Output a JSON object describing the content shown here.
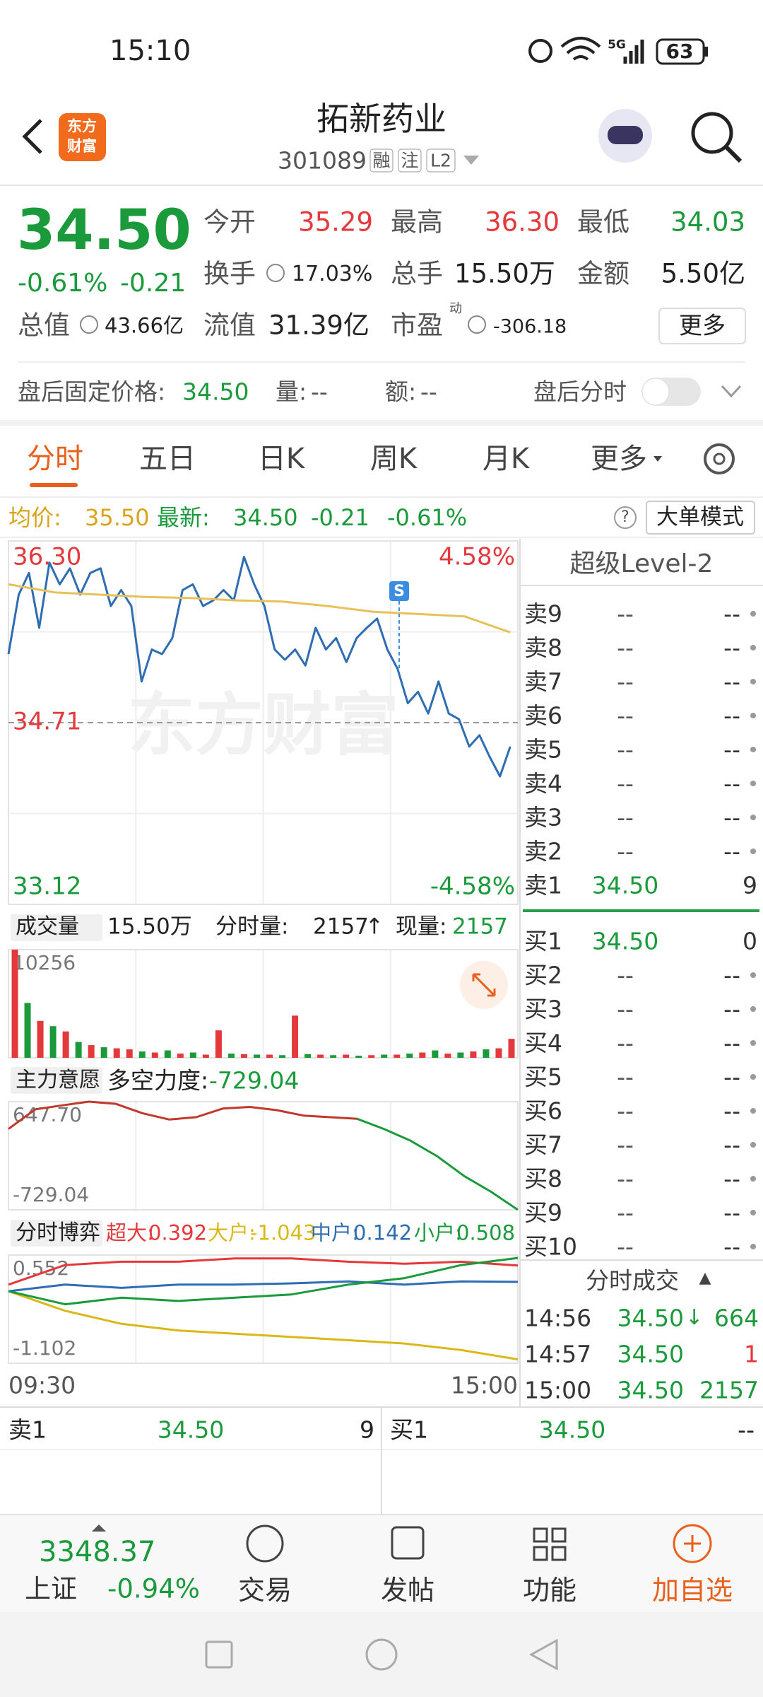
{
  "status": {
    "time": "15:10",
    "network": "5G",
    "battery": "63"
  },
  "header": {
    "logo": [
      "东方",
      "财富"
    ],
    "title": "拓新药业",
    "code": "301089",
    "tags": [
      "融",
      "注",
      "L2"
    ]
  },
  "quote": {
    "price": "34.50",
    "change_pct": "-0.61%",
    "change": "-0.21",
    "fields": [
      {
        "label": "今开",
        "value": "35.29"
      },
      {
        "label": "最高",
        "value": "36.30"
      },
      {
        "label": "最低",
        "value": "34.03"
      },
      {
        "label": "换手",
        "value": "17.03%"
      },
      {
        "label": "总手",
        "value": "15.50万"
      },
      {
        "label": "金额",
        "value": "5.50亿"
      },
      {
        "label": "总值",
        "value": "43.66亿"
      },
      {
        "label": "流值",
        "value": "31.39亿"
      },
      {
        "label": "市盈",
        "sup": "动",
        "value": "-306.18"
      }
    ],
    "more": "更多"
  },
  "after_hours": {
    "label": "盘后固定价格:",
    "price": "34.50",
    "volume_label": "量:",
    "volume": "--",
    "amount_label": "额:",
    "amount": "--",
    "toggle_label": "盘后分时"
  },
  "tabs": [
    "分时",
    "五日",
    "日K",
    "周K",
    "月K",
    "更多"
  ],
  "info_bar": {
    "avg_label": "均价:",
    "avg": "35.50",
    "latest_label": "最新:",
    "latest": "34.50",
    "change": "-0.21",
    "change_pct": "-0.61%",
    "help": "?",
    "mode": "大单模式"
  },
  "chart_data": [
    {
      "type": "line",
      "watermark": "东方财富",
      "signal": "S",
      "grid": true,
      "ylim": [
        33.12,
        36.3
      ],
      "yticks": [
        33.12,
        34.71,
        {
          "value": 36.3,
          "label": "36.30"
        }
      ],
      "y2lim": [
        -4.58,
        4.58
      ],
      "y2ticks": [
        {
          "value": -4.58,
          "label": "-4.58%"
        },
        {
          "value": 4.58,
          "label": "4.58%"
        }
      ],
      "series": [
        {
          "color": "#2f6db3",
          "values": [
            35.31,
            35.83,
            36.02,
            35.54,
            36.11,
            35.92,
            36.06,
            35.83,
            36.02,
            36.06,
            35.73,
            35.87,
            35.73,
            35.07,
            35.35,
            35.31,
            35.45,
            35.87,
            35.92,
            35.73,
            35.78,
            35.87,
            35.78,
            36.16,
            35.92,
            35.73,
            35.35,
            35.26,
            35.35,
            35.21,
            35.54,
            35.35,
            35.45,
            35.24,
            35.45,
            35.54,
            35.62,
            35.35,
            35.18,
            34.88,
            34.98,
            34.79,
            35.07,
            34.79,
            34.74,
            34.5,
            34.6,
            34.41,
            34.24,
            34.5
          ]
        },
        {
          "color": "#e6c15a",
          "values": [
            35.92,
            35.85,
            35.83,
            35.81,
            35.8,
            35.78,
            35.77,
            35.73,
            35.68,
            35.66,
            35.64,
            35.5
          ]
        }
      ]
    },
    {
      "type": "bar",
      "title": "成交量",
      "total": "15.50万",
      "period_label": "分时量:",
      "period_value": "2157",
      "period_arrow": "↑",
      "now_label": "现量:",
      "now_value": "2157",
      "ylim": [
        0,
        10256
      ],
      "yticks": [
        10256
      ],
      "series": [
        {
          "color": "#e4393c",
          "values": [
            10256,
            null,
            3500,
            null,
            2500,
            null,
            1200,
            null,
            900,
            800,
            null,
            500,
            null,
            400,
            null,
            300,
            2600,
            null,
            350,
            null,
            300,
            null,
            4000,
            null,
            300,
            null,
            300,
            null,
            250,
            null,
            300,
            null,
            500,
            null,
            400,
            null,
            600,
            null,
            900,
            1800
          ]
        },
        {
          "color": "#1b9a3c",
          "values": [
            null,
            5200,
            null,
            3000,
            null,
            1500,
            null,
            1000,
            null,
            null,
            600,
            null,
            700,
            null,
            500,
            null,
            null,
            400,
            null,
            300,
            null,
            250,
            null,
            350,
            null,
            250,
            null,
            200,
            null,
            300,
            null,
            400,
            null,
            700,
            null,
            500,
            null,
            800,
            null,
            null
          ]
        }
      ]
    },
    {
      "type": "line",
      "title": "主力意愿",
      "metric_label": "多空力度:",
      "ylim": [
        -729.04,
        647.7
      ],
      "yticks": [
        -729.04,
        {
          "value": 647.7,
          "label": "647.70"
        }
      ],
      "series": [
        {
          "color": "#c0392b",
          "values": [
            300,
            550,
            600,
            647.7,
            620,
            500,
            420,
            450,
            560,
            580,
            540,
            470,
            450,
            430,
            null,
            null,
            null,
            null,
            null,
            null
          ]
        },
        {
          "color": "#1b9a3c",
          "values": [
            null,
            null,
            null,
            null,
            null,
            null,
            null,
            null,
            null,
            null,
            null,
            null,
            null,
            430,
            300,
            150,
            -50,
            -300,
            -500,
            -729.04
          ]
        }
      ]
    },
    {
      "type": "line",
      "title": "分时博弈",
      "x_labels": [
        "09:30",
        "15:00"
      ],
      "ylim": [
        -1.102,
        0.552
      ],
      "yticks": [
        -1.102,
        0.552
      ],
      "series": [
        {
          "name": "超大:",
          "color": "#e4393c",
          "values": [
            0.1,
            0.4,
            0.45,
            0.45,
            0.5,
            0.5,
            0.45,
            0.42,
            0.45,
            0.392
          ]
        },
        {
          "name": "大户:",
          "color": "#d9b81a",
          "values": [
            0,
            -0.3,
            -0.5,
            -0.6,
            -0.65,
            -0.7,
            -0.75,
            -0.8,
            -0.9,
            -1.043
          ]
        },
        {
          "name": "中户:",
          "color": "#2f6db3",
          "values": [
            0,
            0.1,
            0.05,
            0.1,
            0.1,
            0.12,
            0.15,
            0.1,
            0.15,
            0.142
          ]
        },
        {
          "name": "小户:",
          "color": "#1b9a3c",
          "values": [
            0,
            -0.2,
            -0.1,
            -0.15,
            -0.1,
            -0.05,
            0.1,
            0.2,
            0.4,
            0.508
          ]
        }
      ]
    }
  ],
  "level2": {
    "title": "超级Level-2",
    "sell": [
      {
        "label": "卖9",
        "price": "--",
        "volume": "--"
      },
      {
        "label": "卖8",
        "price": "--",
        "volume": "--"
      },
      {
        "label": "卖7",
        "price": "--",
        "volume": "--"
      },
      {
        "label": "卖6",
        "price": "--",
        "volume": "--"
      },
      {
        "label": "卖5",
        "price": "--",
        "volume": "--"
      },
      {
        "label": "卖4",
        "price": "--",
        "volume": "--"
      },
      {
        "label": "卖3",
        "price": "--",
        "volume": "--"
      },
      {
        "label": "卖2",
        "price": "--",
        "volume": "--"
      },
      {
        "label": "卖1",
        "price": "34.50",
        "volume": "9"
      }
    ],
    "buy": [
      {
        "label": "买1",
        "price": "34.50",
        "volume": "0"
      },
      {
        "label": "买2",
        "price": "--",
        "volume": "--"
      },
      {
        "label": "买3",
        "price": "--",
        "volume": "--"
      },
      {
        "label": "买4",
        "price": "--",
        "volume": "--"
      },
      {
        "label": "买5",
        "price": "--",
        "volume": "--"
      },
      {
        "label": "买6",
        "price": "--",
        "volume": "--"
      },
      {
        "label": "买7",
        "price": "--",
        "volume": "--"
      },
      {
        "label": "买8",
        "price": "--",
        "volume": "--"
      },
      {
        "label": "买9",
        "price": "--",
        "volume": "--"
      },
      {
        "label": "买10",
        "price": "--",
        "volume": "--"
      }
    ],
    "trades_title": "分时成交",
    "trades_arrow": "▲",
    "trades": [
      {
        "time": "14:56",
        "price": "34.50",
        "arrow": "↓",
        "volume": "664",
        "color": "#1b9a3c"
      },
      {
        "time": "14:57",
        "price": "34.50",
        "volume": "1",
        "color": "#e4393c"
      },
      {
        "time": "15:00",
        "price": "34.50",
        "volume": "2157",
        "color": "#1b9a3c"
      }
    ]
  },
  "bottom_quote": {
    "sell": {
      "label": "卖1",
      "price": "34.50",
      "volume": "9"
    },
    "buy": {
      "label": "买1",
      "price": "34.50",
      "volume": "--"
    }
  },
  "nav": {
    "index_value": "3348.37",
    "index_name": "上证",
    "index_change": "-0.94%",
    "items": [
      "交易",
      "发帖",
      "功能",
      "加自选"
    ]
  }
}
